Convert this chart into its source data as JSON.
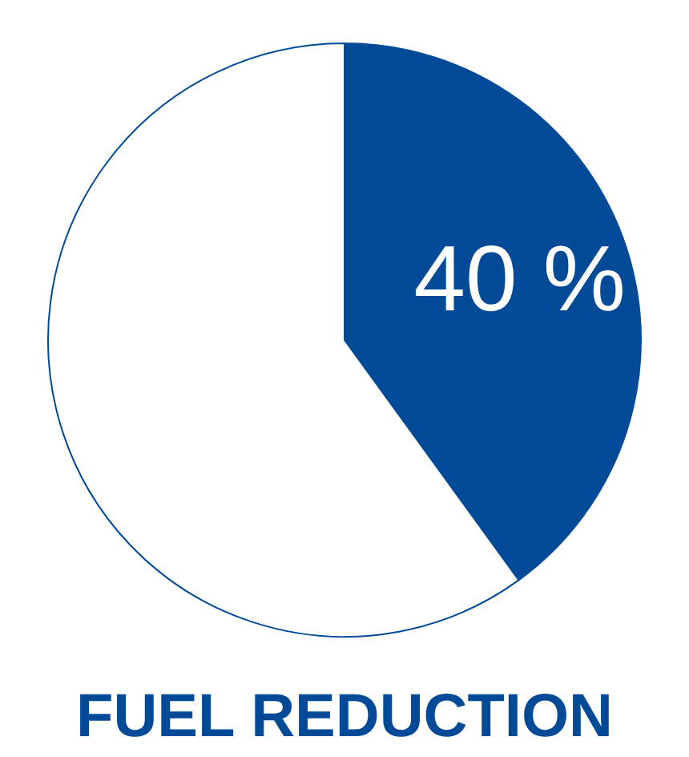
{
  "chart_data": {
    "type": "pie",
    "title": "FUEL REDUCTION",
    "categories": [
      null,
      null
    ],
    "values": [
      40,
      60
    ],
    "colors": [
      "#004a98",
      "#ffffff"
    ],
    "value_labels": [
      "40 %",
      null
    ],
    "legend": false
  }
}
